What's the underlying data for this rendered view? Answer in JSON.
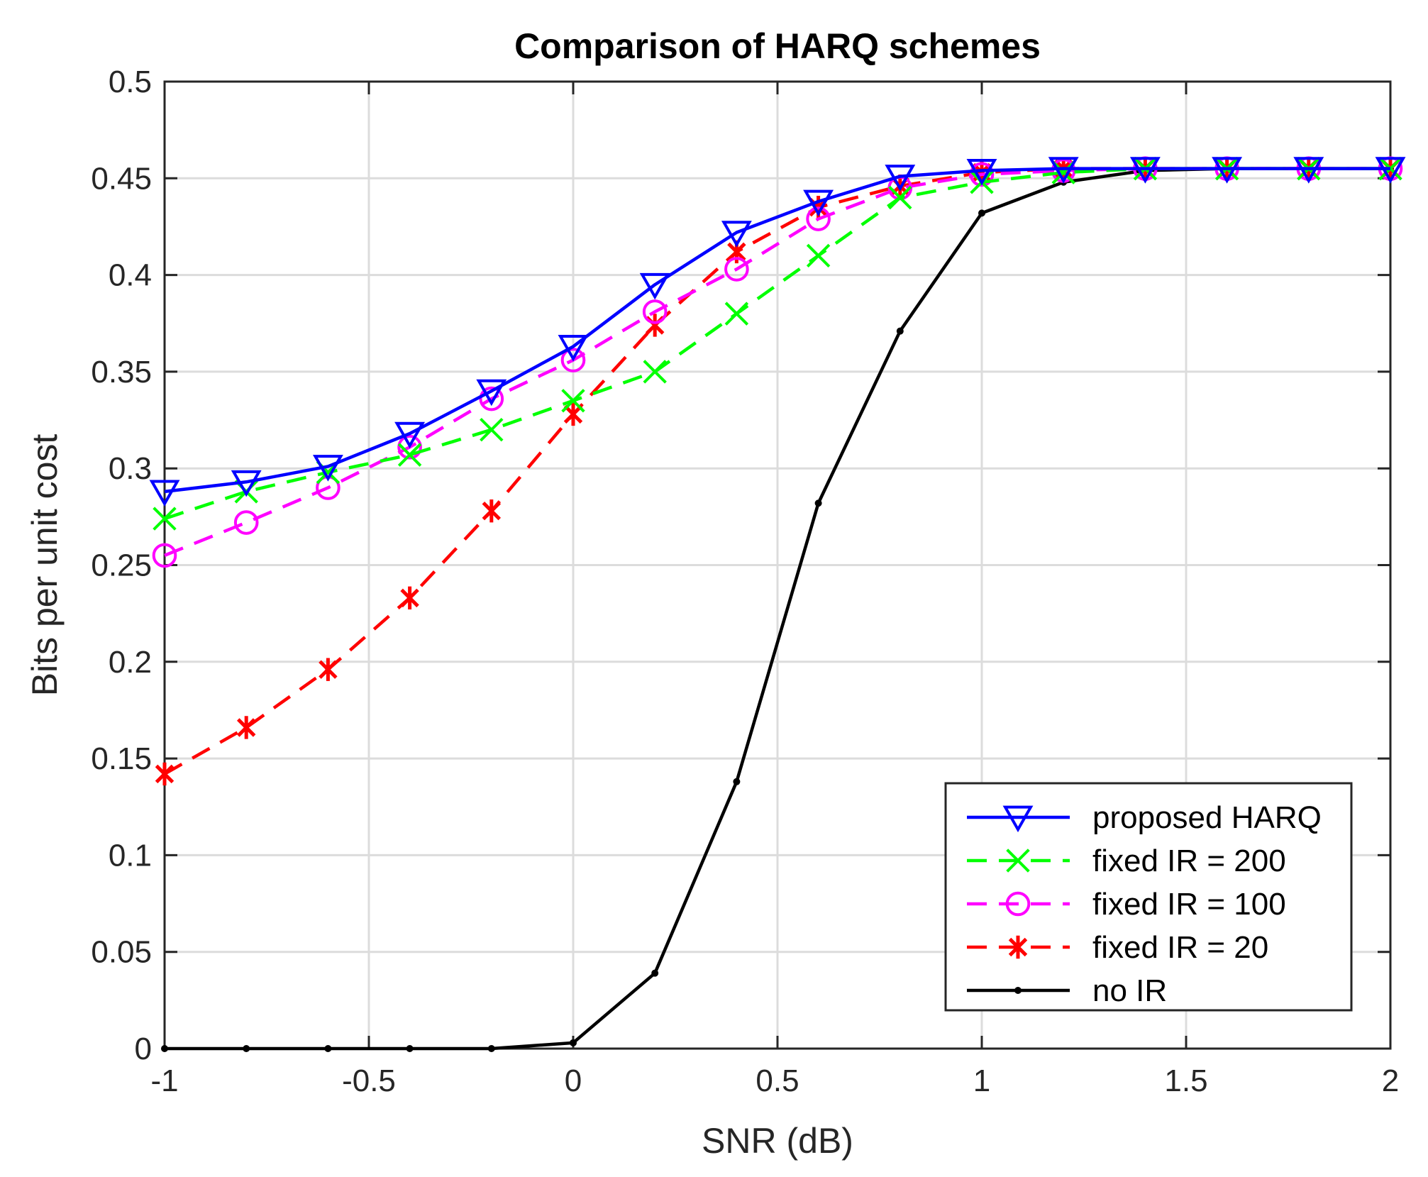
{
  "chart_data": {
    "type": "line",
    "title": "Comparison of HARQ schemes",
    "xlabel": "SNR (dB)",
    "ylabel": "Bits per unit cost",
    "xlim": [
      -1,
      2
    ],
    "ylim": [
      0,
      0.5
    ],
    "grid": true,
    "legend_position": "bottom-right",
    "xticks": [
      -1,
      -0.5,
      0,
      0.5,
      1,
      1.5,
      2
    ],
    "xtick_labels": [
      "-1",
      "-0.5",
      "0",
      "0.5",
      "1",
      "1.5",
      "2"
    ],
    "yticks": [
      0,
      0.05,
      0.1,
      0.15,
      0.2,
      0.25,
      0.3,
      0.35,
      0.4,
      0.45,
      0.5
    ],
    "ytick_labels": [
      "0",
      "0.05",
      "0.1",
      "0.15",
      "0.2",
      "0.25",
      "0.3",
      "0.35",
      "0.4",
      "0.45",
      "0.5"
    ],
    "x": [
      -1,
      -0.8,
      -0.6,
      -0.4,
      -0.2,
      0,
      0.2,
      0.4,
      0.6,
      0.8,
      1,
      1.2,
      1.4,
      1.6,
      1.8,
      2
    ],
    "series": [
      {
        "name": "proposed HARQ",
        "color": "#0000ff",
        "line_style": "solid",
        "marker": "triangle-down",
        "values": [
          0.288,
          0.293,
          0.301,
          0.318,
          0.34,
          0.363,
          0.395,
          0.422,
          0.438,
          0.451,
          0.454,
          0.455,
          0.455,
          0.455,
          0.455,
          0.455
        ]
      },
      {
        "name": "fixed IR = 200",
        "color": "#00ff00",
        "line_style": "dashed",
        "marker": "x",
        "values": [
          0.274,
          0.288,
          0.298,
          0.307,
          0.32,
          0.335,
          0.35,
          0.38,
          0.41,
          0.44,
          0.448,
          0.453,
          0.455,
          0.455,
          0.455,
          0.455
        ]
      },
      {
        "name": "fixed IR = 100",
        "color": "#ff00ff",
        "line_style": "dashed",
        "marker": "circle",
        "values": [
          0.255,
          0.272,
          0.29,
          0.311,
          0.336,
          0.356,
          0.381,
          0.403,
          0.429,
          0.445,
          0.452,
          0.454,
          0.455,
          0.455,
          0.455,
          0.455
        ]
      },
      {
        "name": "fixed IR = 20",
        "color": "#ff0000",
        "line_style": "dashed",
        "marker": "asterisk",
        "values": [
          0.142,
          0.166,
          0.196,
          0.233,
          0.278,
          0.328,
          0.374,
          0.412,
          0.435,
          0.446,
          0.453,
          0.455,
          0.455,
          0.455,
          0.455,
          0.455
        ]
      },
      {
        "name": "no IR",
        "color": "#000000",
        "line_style": "solid",
        "marker": "dot",
        "values": [
          0.0,
          0.0,
          0.0,
          0.0,
          0.0,
          0.003,
          0.039,
          0.138,
          0.282,
          0.371,
          0.432,
          0.448,
          0.454,
          0.455,
          0.455,
          0.455
        ]
      }
    ]
  }
}
